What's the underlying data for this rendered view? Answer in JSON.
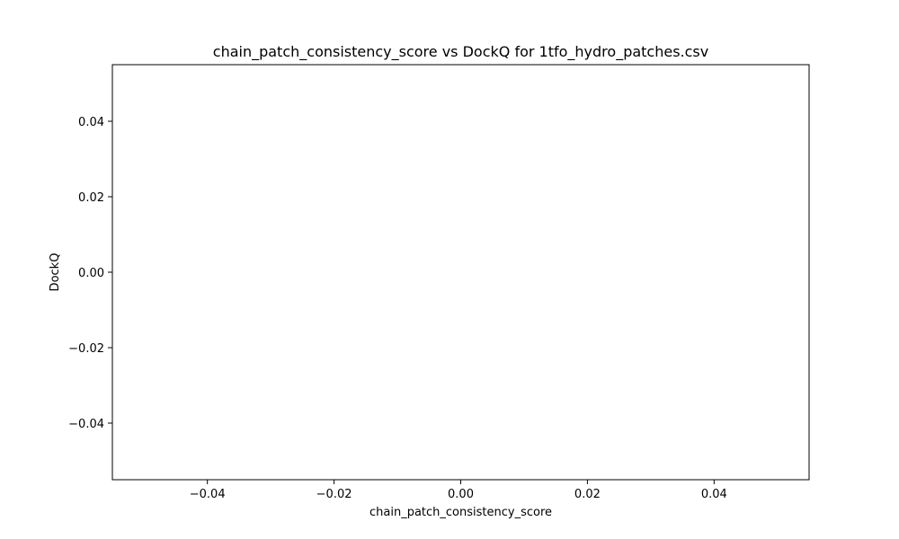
{
  "chart_data": {
    "type": "scatter",
    "title": "chain_patch_consistency_score vs DockQ for 1tfo_hydro_patches.csv",
    "xlabel": "chain_patch_consistency_score",
    "ylabel": "DockQ",
    "xlim": [
      -0.055,
      0.055
    ],
    "ylim": [
      -0.055,
      0.055
    ],
    "xticks": [
      -0.04,
      -0.02,
      0.0,
      0.02,
      0.04
    ],
    "yticks": [
      -0.04,
      -0.02,
      0.0,
      0.02,
      0.04
    ],
    "xtick_labels": [
      "−0.04",
      "−0.02",
      "0.00",
      "0.02",
      "0.04"
    ],
    "ytick_labels": [
      "−0.04",
      "−0.02",
      "0.00",
      "0.02",
      "0.04"
    ],
    "x": [],
    "y": [],
    "grid": false,
    "legend": "none"
  }
}
